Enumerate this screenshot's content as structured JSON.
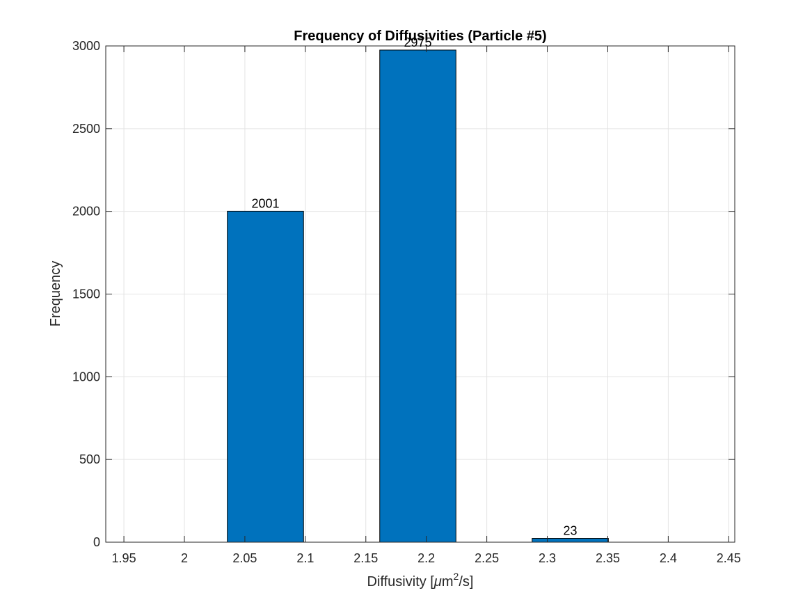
{
  "chart_data": {
    "type": "bar",
    "title": "Frequency of Diffusivities (Particle #5)",
    "xlabel": {
      "prefix": "Diffusivity [",
      "mu": "μ",
      "unit": "m",
      "sup": "2",
      "suffix": "/s]"
    },
    "ylabel": "Frequency",
    "xlim": [
      1.935,
      2.455
    ],
    "ylim": [
      0,
      3000
    ],
    "grid": true,
    "bar_color": "#0072bd",
    "bins": [
      {
        "x0": 2.0355,
        "x1": 2.0985,
        "value": 2001,
        "label": "2001"
      },
      {
        "x0": 2.1615,
        "x1": 2.2245,
        "value": 2975,
        "label": "2975"
      },
      {
        "x0": 2.2875,
        "x1": 2.3505,
        "value": 23,
        "label": "23"
      }
    ],
    "xticks": [
      {
        "v": 1.95,
        "label": "1.95"
      },
      {
        "v": 2.0,
        "label": "2"
      },
      {
        "v": 2.05,
        "label": "2.05"
      },
      {
        "v": 2.1,
        "label": "2.1"
      },
      {
        "v": 2.15,
        "label": "2.15"
      },
      {
        "v": 2.2,
        "label": "2.2"
      },
      {
        "v": 2.25,
        "label": "2.25"
      },
      {
        "v": 2.3,
        "label": "2.3"
      },
      {
        "v": 2.35,
        "label": "2.35"
      },
      {
        "v": 2.4,
        "label": "2.4"
      },
      {
        "v": 2.45,
        "label": "2.45"
      }
    ],
    "yticks": [
      {
        "v": 0,
        "label": "0"
      },
      {
        "v": 500,
        "label": "500"
      },
      {
        "v": 1000,
        "label": "1000"
      },
      {
        "v": 1500,
        "label": "1500"
      },
      {
        "v": 2000,
        "label": "2000"
      },
      {
        "v": 2500,
        "label": "2500"
      },
      {
        "v": 3000,
        "label": "3000"
      }
    ]
  }
}
